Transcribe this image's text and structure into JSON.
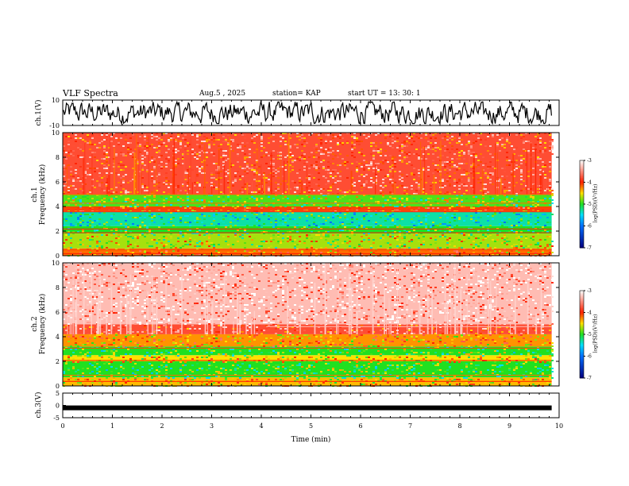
{
  "header": {
    "title": "VLF Spectra",
    "date": "Aug.5 , 2025",
    "station": "station= KAP",
    "start_ut": "start UT =  13: 30: 1"
  },
  "colors": {
    "c_m7": "#000080",
    "c_m6": "#0070ff",
    "c_m5_5": "#00e0ff",
    "c_m5": "#20e020",
    "c_m4_5": "#ffe000",
    "c_m4": "#ff2000",
    "c_m3": "#ffffff"
  },
  "chart_data": [
    {
      "type": "line",
      "name": "ch1-waveform",
      "ylabel": "ch.1(V)",
      "ylim": [
        -10,
        10
      ],
      "yticks": [
        "10",
        "-10"
      ],
      "description_values": "noisy broadband voltage oscillating approximately between -8 and 8 V"
    },
    {
      "type": "heatmap",
      "name": "ch1-spectrogram",
      "ylabel": "ch.1\nFrequency (kHz)",
      "ylabel_lines": [
        "ch.1",
        "Frequency (kHz)"
      ],
      "ylim": [
        0,
        10
      ],
      "yticks": [
        "0",
        "2",
        "4",
        "6",
        "8",
        "10"
      ],
      "colorbar": {
        "label": "log(PSD)(V²/Hz)",
        "range": [
          -7,
          -3
        ],
        "ticks": [
          "-3",
          "-4",
          "-5",
          "-6",
          "-7"
        ]
      },
      "bands_log_psd": [
        {
          "f_range_khz": [
            0,
            0.6
          ],
          "log_psd": -4.2
        },
        {
          "f_range_khz": [
            0.6,
            1.8
          ],
          "log_psd": -4.7
        },
        {
          "f_range_khz": [
            1.8,
            2.4
          ],
          "log_psd": -5.0
        },
        {
          "f_range_khz": [
            2.4,
            3.6
          ],
          "log_psd": -5.3
        },
        {
          "f_range_khz": [
            3.6,
            4.0
          ],
          "log_psd": -4.1
        },
        {
          "f_range_khz": [
            4.0,
            5.0
          ],
          "log_psd": -4.9
        },
        {
          "f_range_khz": [
            5.0,
            10.0
          ],
          "log_psd": -3.8
        }
      ]
    },
    {
      "type": "heatmap",
      "name": "ch2-spectrogram",
      "ylabel": "ch.2\nFrequency (kHz)",
      "ylabel_lines": [
        "ch.2",
        "Frequency (kHz)"
      ],
      "ylim": [
        0,
        10
      ],
      "yticks": [
        "0",
        "2",
        "4",
        "6",
        "8",
        "10"
      ],
      "colorbar": {
        "label": "log(PSD)(V²/Hz)",
        "range": [
          -7,
          -3
        ],
        "ticks": [
          "-3",
          "-4",
          "-5",
          "-6",
          "-7"
        ]
      },
      "bands_log_psd": [
        {
          "f_range_khz": [
            0,
            0.7
          ],
          "log_psd": -4.4
        },
        {
          "f_range_khz": [
            0.7,
            2.0
          ],
          "log_psd": -5.0
        },
        {
          "f_range_khz": [
            2.0,
            2.5
          ],
          "log_psd": -4.5
        },
        {
          "f_range_khz": [
            2.5,
            3.2
          ],
          "log_psd": -5.0
        },
        {
          "f_range_khz": [
            3.2,
            4.2
          ],
          "log_psd": -4.3
        },
        {
          "f_range_khz": [
            4.2,
            5.0
          ],
          "log_psd": -3.8
        },
        {
          "f_range_khz": [
            5.0,
            10.0
          ],
          "log_psd": -3.3
        }
      ]
    },
    {
      "type": "line",
      "name": "ch3-waveform",
      "ylabel": "ch.3(V)",
      "ylim": [
        -5,
        5
      ],
      "yticks": [
        "5",
        "0",
        "-5"
      ],
      "level_v": -1.0
    }
  ],
  "xaxis": {
    "label": "Time (min)",
    "xlim": [
      0,
      10
    ],
    "ticks": [
      "0",
      "1",
      "2",
      "3",
      "4",
      "5",
      "6",
      "7",
      "8",
      "9",
      "10"
    ],
    "data_end_min": 9.85
  }
}
